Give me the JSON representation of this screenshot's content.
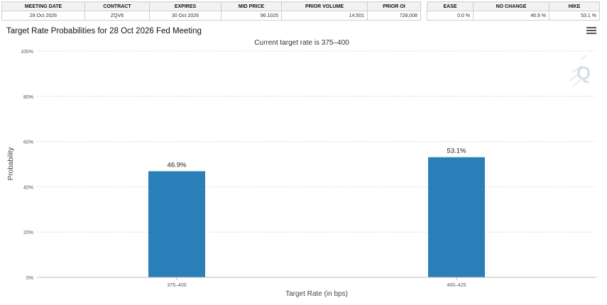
{
  "meeting_table": {
    "headers": [
      "MEETING DATE",
      "CONTRACT",
      "EXPIRES",
      "MID PRICE",
      "PRIOR VOLUME",
      "PRIOR OI"
    ],
    "row": [
      "28 Oct 2026",
      "ZQV6",
      "30 Oct 2026",
      "96.1025",
      "14,501",
      "728,008"
    ]
  },
  "prob_table": {
    "headers": [
      "EASE",
      "NO CHANGE",
      "HIKE"
    ],
    "row": [
      "0.0 %",
      "46.9 %",
      "53.1 %"
    ]
  },
  "menu_icon": "hamburger-menu-icon",
  "logo_icon": "q-logo-icon",
  "chart_data": {
    "type": "bar",
    "title": "Target Rate Probabilities for 28 Oct 2026 Fed Meeting",
    "subtitle": "Current target rate is 375–400",
    "xlabel": "Target Rate (in bps)",
    "ylabel": "Probability",
    "categories": [
      "375–400",
      "400–425"
    ],
    "values": [
      46.9,
      53.1
    ],
    "data_labels": [
      "46.9%",
      "53.1%"
    ],
    "ylim": [
      0,
      100
    ],
    "yticks": [
      0,
      20,
      40,
      60,
      80,
      100
    ],
    "ytick_labels": [
      "0%",
      "20%",
      "40%",
      "60%",
      "80%",
      "100%"
    ],
    "bar_color": "#2b7fb8",
    "grid": true,
    "legend": "none"
  }
}
